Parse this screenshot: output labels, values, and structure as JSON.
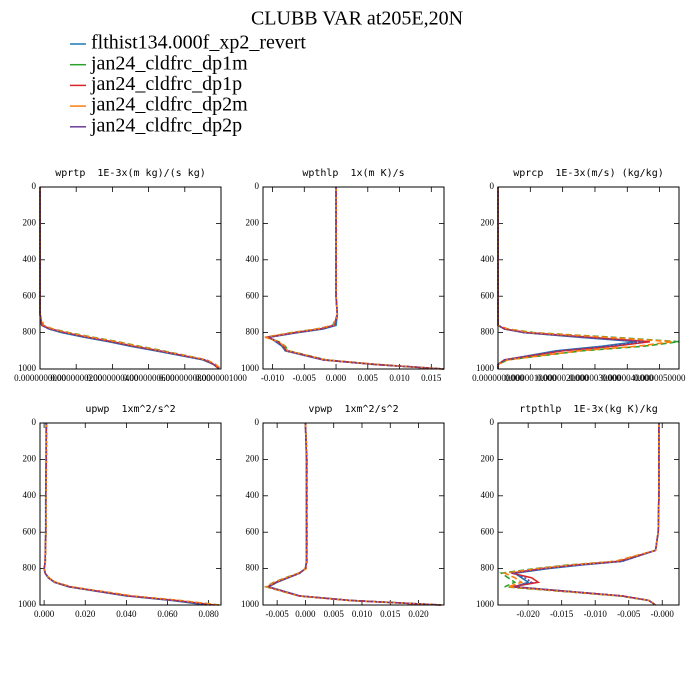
{
  "title": "CLUBB VAR at205E,20N",
  "series": [
    {
      "name": "flthist134.000f_xp2_revert",
      "color": "#1f77b4",
      "dash": "none"
    },
    {
      "name": "jan24_cldfrc_dp1m",
      "color": "#2ca02c",
      "dash": "6,3"
    },
    {
      "name": "jan24_cldfrc_dp1p",
      "color": "#d62728",
      "dash": "none"
    },
    {
      "name": "jan24_cldfrc_dp2m",
      "color": "#ff7f0e",
      "dash": "6,3"
    },
    {
      "name": "jan24_cldfrc_dp2p",
      "color": "#6a3d9a",
      "dash": "2,2"
    }
  ],
  "chart_data": [
    {
      "type": "line",
      "title": "wprtp  1E-3x(m kg)/(s kg)",
      "y": [
        0,
        200,
        400,
        600,
        700,
        760,
        780,
        800,
        825,
        850,
        875,
        900,
        950,
        975,
        1000
      ],
      "ylim": [
        0,
        1000
      ],
      "y_inverted": true,
      "yticks": [
        0,
        200,
        400,
        600,
        800,
        1000
      ],
      "xlim": [
        0,
        1e-07
      ],
      "xticks": [
        {
          "value": 0,
          "label": "0.0000000000"
        },
        {
          "value": 2e-08,
          "label": "0.0000000200"
        },
        {
          "value": 4e-08,
          "label": "0.0000000400"
        },
        {
          "value": 6e-08,
          "label": "0.0000000600"
        },
        {
          "value": 8e-08,
          "label": "0.0000000800"
        },
        {
          "value": 1e-07,
          "label": "0.0000001000"
        }
      ],
      "series": [
        {
          "values": [
            0,
            0,
            0,
            0,
            0,
            1e-09,
            5e-09,
            1.2e-08,
            2.4e-08,
            3.8e-08,
            5e-08,
            6.4e-08,
            9e-08,
            9.6e-08,
            9.9e-08
          ]
        },
        {
          "values": [
            0,
            0,
            0,
            0,
            0,
            2e-09,
            7e-09,
            1.6e-08,
            2.9e-08,
            4.3e-08,
            5.5e-08,
            6.8e-08,
            9.2e-08,
            9.7e-08,
            1e-07
          ]
        },
        {
          "values": [
            0,
            0,
            0,
            0,
            0,
            1e-09,
            6e-09,
            1.4e-08,
            2.6e-08,
            4e-08,
            5.2e-08,
            6.6e-08,
            9.1e-08,
            9.6e-08,
            9.9e-08
          ]
        },
        {
          "values": [
            0,
            0,
            0,
            0,
            0,
            2e-09,
            7e-09,
            1.5e-08,
            2.8e-08,
            4.2e-08,
            5.4e-08,
            6.7e-08,
            9.2e-08,
            9.7e-08,
            1e-07
          ]
        },
        {
          "values": [
            0,
            0,
            0,
            0,
            0,
            1e-09,
            5e-09,
            1.3e-08,
            2.5e-08,
            3.9e-08,
            5.1e-08,
            6.5e-08,
            9.1e-08,
            9.6e-08,
            9.9e-08
          ]
        }
      ]
    },
    {
      "type": "line",
      "title": "wpthlp  1x(m K)/s",
      "y": [
        0,
        200,
        400,
        600,
        700,
        760,
        780,
        800,
        825,
        850,
        875,
        900,
        950,
        975,
        1000
      ],
      "ylim": [
        0,
        1000
      ],
      "y_inverted": true,
      "yticks": [
        0,
        200,
        400,
        600,
        800,
        1000
      ],
      "xlim": [
        -0.0115,
        0.017
      ],
      "xticks": [
        {
          "value": -0.01,
          "label": "-0.010"
        },
        {
          "value": -0.005,
          "label": "-0.005"
        },
        {
          "value": 0,
          "label": "0.000"
        },
        {
          "value": 0.005,
          "label": "0.005"
        },
        {
          "value": 0.01,
          "label": "0.010"
        },
        {
          "value": 0.015,
          "label": "0.015"
        }
      ],
      "series": [
        {
          "values": [
            0,
            0,
            0,
            0,
            0.0002,
            0,
            -0.002,
            -0.006,
            -0.0105,
            -0.0095,
            -0.0085,
            -0.008,
            -0.002,
            0.006,
            0.017
          ]
        },
        {
          "values": [
            0,
            0,
            0,
            0,
            0.0002,
            -0.0005,
            -0.003,
            -0.007,
            -0.011,
            -0.009,
            -0.008,
            -0.0075,
            -0.0015,
            0.0065,
            0.017
          ]
        },
        {
          "values": [
            0,
            0,
            0,
            0,
            0.0002,
            -0.0003,
            -0.0025,
            -0.0065,
            -0.0108,
            -0.0092,
            -0.0083,
            -0.0078,
            -0.0018,
            0.0062,
            0.017
          ]
        },
        {
          "values": [
            0,
            0,
            0,
            0,
            0.0002,
            -0.0004,
            -0.003,
            -0.0068,
            -0.0112,
            -0.0091,
            -0.0081,
            -0.0076,
            -0.0016,
            0.0064,
            0.017
          ]
        },
        {
          "values": [
            0,
            0,
            0,
            0,
            0.0002,
            -0.0002,
            -0.0022,
            -0.0062,
            -0.0104,
            -0.0094,
            -0.0084,
            -0.0079,
            -0.002,
            0.006,
            0.017
          ]
        }
      ]
    },
    {
      "type": "line",
      "title": "wprcp  1E-3x(m/s) (kg/kg)",
      "y": [
        0,
        200,
        400,
        600,
        700,
        760,
        780,
        800,
        825,
        850,
        875,
        900,
        950,
        975,
        1000
      ],
      "ylim": [
        0,
        1000
      ],
      "y_inverted": true,
      "yticks": [
        0,
        200,
        400,
        600,
        800,
        1000
      ],
      "xlim": [
        0,
        5.6e-06
      ],
      "xticks": [
        {
          "value": 0,
          "label": "0.0000000000"
        },
        {
          "value": 1e-06,
          "label": "0.0000010000"
        },
        {
          "value": 2e-06,
          "label": "0.0000020000"
        },
        {
          "value": 3e-06,
          "label": "0.0000030000"
        },
        {
          "value": 4e-06,
          "label": "0.0000040000"
        },
        {
          "value": 5e-06,
          "label": "0.0000050000"
        }
      ],
      "series": [
        {
          "values": [
            0,
            0,
            0,
            0,
            0,
            0,
            2e-07,
            8e-07,
            2.5e-06,
            4.3e-06,
            3.2e-06,
            1.8e-06,
            2e-07,
            0,
            0
          ]
        },
        {
          "values": [
            0,
            0,
            0,
            0,
            0,
            0,
            3e-07,
            1.1e-06,
            3.5e-06,
            5.6e-06,
            4.5e-06,
            2.6e-06,
            3e-07,
            0,
            0
          ]
        },
        {
          "values": [
            0,
            0,
            0,
            0,
            0,
            0,
            2e-07,
            9e-07,
            2.8e-06,
            4.7e-06,
            3.6e-06,
            2e-06,
            2e-07,
            0,
            0
          ]
        },
        {
          "values": [
            0,
            0,
            0,
            0,
            0,
            0,
            3e-07,
            1e-06,
            3.3e-06,
            5.4e-06,
            4.3e-06,
            2.5e-06,
            3e-07,
            0,
            0
          ]
        },
        {
          "values": [
            0,
            0,
            0,
            0,
            0,
            0,
            2e-07,
            8e-07,
            2.6e-06,
            4.5e-06,
            3.4e-06,
            1.9e-06,
            2e-07,
            0,
            0
          ]
        }
      ]
    },
    {
      "type": "line",
      "title": "upwp  1xm^2/s^2",
      "y": [
        0,
        200,
        400,
        600,
        700,
        760,
        780,
        800,
        825,
        850,
        875,
        900,
        950,
        975,
        1000
      ],
      "ylim": [
        0,
        1000
      ],
      "y_inverted": true,
      "yticks": [
        0,
        200,
        400,
        600,
        800,
        1000
      ],
      "xlim": [
        -0.002,
        0.086
      ],
      "xticks": [
        {
          "value": 0,
          "label": "0.000"
        },
        {
          "value": 0.02,
          "label": "0.020"
        },
        {
          "value": 0.04,
          "label": "0.040"
        },
        {
          "value": 0.06,
          "label": "0.060"
        },
        {
          "value": 0.08,
          "label": "0.080"
        }
      ],
      "series": [
        {
          "values": [
            0.001,
            0.001,
            0.0008,
            0.0008,
            0.0006,
            0.0005,
            0.0003,
            0,
            0.0005,
            0.002,
            0.005,
            0.012,
            0.04,
            0.062,
            0.079
          ]
        },
        {
          "values": [
            0.0012,
            0.0011,
            0.0009,
            0.0009,
            0.0007,
            0.0006,
            0.0004,
            0.0001,
            0.0006,
            0.0022,
            0.0055,
            0.013,
            0.042,
            0.065,
            0.085
          ]
        },
        {
          "values": [
            0.0011,
            0.001,
            0.0008,
            0.0008,
            0.0006,
            0.0005,
            0.0003,
            0,
            0.0005,
            0.0021,
            0.0052,
            0.0125,
            0.041,
            0.064,
            0.083
          ]
        },
        {
          "values": [
            0.0012,
            0.0011,
            0.0009,
            0.0009,
            0.0007,
            0.0006,
            0.0004,
            0.0001,
            0.0006,
            0.0023,
            0.0056,
            0.0132,
            0.043,
            0.066,
            0.085
          ]
        },
        {
          "values": [
            0.001,
            0.001,
            0.0008,
            0.0008,
            0.0006,
            0.0005,
            0.0003,
            0,
            0.0005,
            0.002,
            0.0051,
            0.0122,
            0.0405,
            0.063,
            0.081
          ]
        }
      ]
    },
    {
      "type": "line",
      "title": "vpwp  1xm^2/s^2",
      "y": [
        0,
        200,
        400,
        600,
        700,
        760,
        780,
        800,
        825,
        850,
        875,
        900,
        950,
        975,
        1000
      ],
      "ylim": [
        0,
        1000
      ],
      "y_inverted": true,
      "yticks": [
        0,
        200,
        400,
        600,
        800,
        1000
      ],
      "xlim": [
        -0.0075,
        0.0245
      ],
      "xticks": [
        {
          "value": -0.005,
          "label": "-0.005"
        },
        {
          "value": 0,
          "label": "0.000"
        },
        {
          "value": 0.005,
          "label": "0.005"
        },
        {
          "value": 0.01,
          "label": "0.010"
        },
        {
          "value": 0.015,
          "label": "0.015"
        },
        {
          "value": 0.02,
          "label": "0.020"
        }
      ],
      "series": [
        {
          "values": [
            0,
            0.0002,
            0.0002,
            0.0002,
            0.0002,
            0.0002,
            0.0001,
            0,
            -0.001,
            -0.003,
            -0.005,
            -0.0065,
            -0.001,
            0.008,
            0.024
          ]
        },
        {
          "values": [
            0,
            0.0003,
            0.0003,
            0.0003,
            0.0003,
            0.0003,
            0.0002,
            0.0001,
            -0.0012,
            -0.0035,
            -0.0056,
            -0.007,
            -0.0012,
            0.0078,
            0.024
          ]
        },
        {
          "values": [
            0,
            0.0002,
            0.0002,
            0.0002,
            0.0002,
            0.0002,
            0.0001,
            0,
            -0.0011,
            -0.0032,
            -0.0052,
            -0.0067,
            -0.0011,
            0.0079,
            0.024
          ]
        },
        {
          "values": [
            0,
            0.0003,
            0.0003,
            0.0003,
            0.0003,
            0.0003,
            0.0002,
            0.0001,
            -0.0012,
            -0.0034,
            -0.0055,
            -0.0069,
            -0.0012,
            0.0078,
            0.024
          ]
        },
        {
          "values": [
            0,
            0.0002,
            0.0002,
            0.0002,
            0.0002,
            0.0002,
            0.0001,
            0,
            -0.001,
            -0.0031,
            -0.0051,
            -0.0066,
            -0.001,
            0.008,
            0.024
          ]
        }
      ]
    },
    {
      "type": "line",
      "title": "rtpthlp  1E-3x(kg K)/kg",
      "y": [
        0,
        200,
        400,
        600,
        700,
        760,
        780,
        800,
        825,
        850,
        875,
        900,
        950,
        975,
        1000
      ],
      "ylim": [
        0,
        1000
      ],
      "y_inverted": true,
      "yticks": [
        0,
        200,
        400,
        600,
        800,
        1000
      ],
      "xlim": [
        -0.0245,
        0.0025
      ],
      "xticks": [
        {
          "value": -0.02,
          "label": "-0.020"
        },
        {
          "value": -0.015,
          "label": "-0.015"
        },
        {
          "value": -0.01,
          "label": "-0.010"
        },
        {
          "value": -0.005,
          "label": "-0.005"
        },
        {
          "value": 0,
          "label": "-0.000"
        }
      ],
      "series": [
        {
          "values": [
            -0.0005,
            -0.0005,
            -0.0005,
            -0.0006,
            -0.001,
            -0.006,
            -0.012,
            -0.017,
            -0.022,
            -0.021,
            -0.02,
            -0.022,
            -0.006,
            -0.002,
            -0.001
          ]
        },
        {
          "values": [
            -0.0005,
            -0.0005,
            -0.0005,
            -0.0006,
            -0.001,
            -0.007,
            -0.014,
            -0.019,
            -0.024,
            -0.023,
            -0.022,
            -0.0235,
            -0.0065,
            -0.002,
            -0.001
          ]
        },
        {
          "values": [
            -0.0005,
            -0.0005,
            -0.0005,
            -0.0006,
            -0.001,
            -0.0065,
            -0.013,
            -0.018,
            -0.0225,
            -0.0195,
            -0.0185,
            -0.0225,
            -0.006,
            -0.002,
            -0.001
          ]
        },
        {
          "values": [
            -0.0005,
            -0.0005,
            -0.0005,
            -0.0006,
            -0.001,
            -0.007,
            -0.0135,
            -0.0185,
            -0.0235,
            -0.022,
            -0.021,
            -0.023,
            -0.0062,
            -0.002,
            -0.001
          ]
        },
        {
          "values": [
            -0.0005,
            -0.0005,
            -0.0005,
            -0.0006,
            -0.001,
            -0.006,
            -0.0125,
            -0.0175,
            -0.0222,
            -0.0205,
            -0.0195,
            -0.0222,
            -0.006,
            -0.002,
            -0.001
          ]
        }
      ]
    }
  ]
}
